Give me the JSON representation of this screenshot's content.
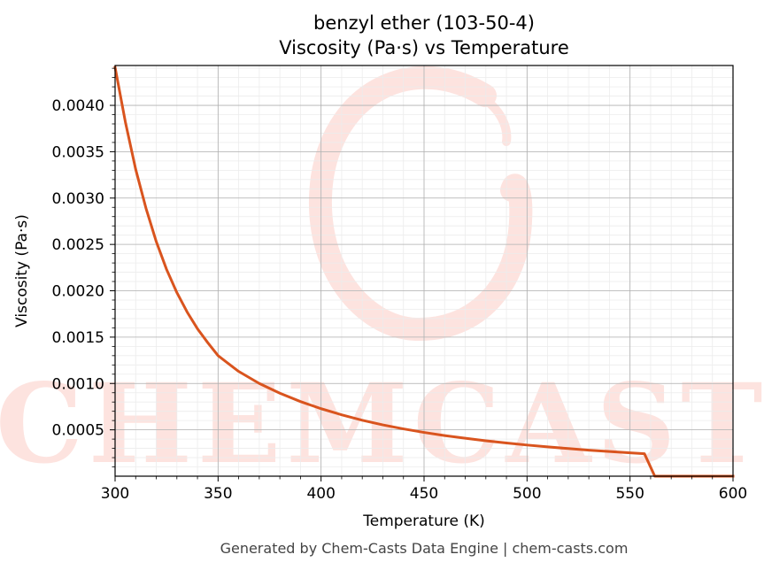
{
  "chart_data": {
    "type": "line",
    "title_line1": "benzyl ether (103-50-4)",
    "title_line2": "Viscosity (Pa·s) vs Temperature",
    "xlabel": "Temperature (K)",
    "ylabel": "Viscosity (Pa·s)",
    "xlim": [
      300,
      600
    ],
    "ylim": [
      0.0,
      0.00443
    ],
    "xticks": [
      300,
      350,
      400,
      450,
      500,
      550,
      600
    ],
    "xtick_labels": [
      "300",
      "350",
      "400",
      "450",
      "500",
      "550",
      "600"
    ],
    "yticks": [
      0.0005,
      0.001,
      0.0015,
      0.002,
      0.0025,
      0.003,
      0.0035,
      0.004
    ],
    "ytick_labels": [
      "0.0005",
      "0.0010",
      "0.0015",
      "0.0020",
      "0.0025",
      "0.0030",
      "0.0035",
      "0.0040"
    ],
    "grid": true,
    "series": [
      {
        "color": "#d9541e",
        "x": [
          300,
          305,
          310,
          315,
          320,
          325,
          330,
          335,
          340,
          345,
          350,
          360,
          370,
          380,
          390,
          400,
          410,
          420,
          430,
          440,
          450,
          460,
          470,
          480,
          490,
          500,
          510,
          520,
          530,
          540,
          550,
          557,
          562,
          570,
          580,
          590,
          600
        ],
        "y": [
          0.00441,
          0.00382,
          0.00331,
          0.00289,
          0.00253,
          0.00223,
          0.00198,
          0.00177,
          0.00159,
          0.00144,
          0.0013,
          0.00113,
          0.001,
          0.000895,
          0.000805,
          0.000728,
          0.000662,
          0.000603,
          0.000553,
          0.00051,
          0.000472,
          0.000438,
          0.000409,
          0.000382,
          0.000358,
          0.000336,
          0.000316,
          0.000298,
          0.000281,
          0.000266,
          0.000252,
          0.000242,
          0.0,
          0.0,
          0.0,
          0.0,
          0.0
        ]
      }
    ],
    "watermark_text": "CHEMCASTS"
  },
  "footer": "Generated by Chem-Casts Data Engine | chem-casts.com"
}
